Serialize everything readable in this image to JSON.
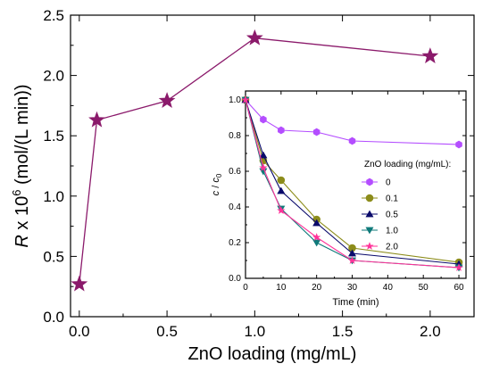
{
  "chart_data": [
    {
      "type": "line",
      "xlabel": "ZnO loading (mg/mL)",
      "ylabel": {
        "italic": "R",
        "mid": " x 10",
        "sup": "6",
        "rest": " (mol/(L min))"
      },
      "xlim": [
        -0.05,
        2.25
      ],
      "ylim": [
        0,
        2.5
      ],
      "xticks": [
        "0.0",
        "0.5",
        "1.0",
        "1.5",
        "2.0"
      ],
      "yticks": [
        "0.0",
        "0.5",
        "1.0",
        "1.5",
        "2.0",
        "2.5"
      ],
      "grid": false,
      "series": [
        {
          "color": "#8b1a6b",
          "marker": "star",
          "x": [
            0,
            0.1,
            0.5,
            1.0,
            2.0
          ],
          "y": [
            0.27,
            1.63,
            1.79,
            2.31,
            2.16
          ]
        }
      ]
    },
    {
      "type": "line",
      "xlabel": "Time (min)",
      "ylabel": {
        "italic_c": "c",
        "slash": " / ",
        "italic_c0": "c",
        "sub": "0"
      },
      "xlim": [
        0,
        62
      ],
      "ylim": [
        0,
        1.05
      ],
      "xticks": [
        "0",
        "10",
        "20",
        "30",
        "40",
        "50",
        "60"
      ],
      "yticks": [
        "0.0",
        "0.2",
        "0.4",
        "0.6",
        "0.8",
        "1.0"
      ],
      "grid": false,
      "legend": {
        "title": "ZnO loading (mg/mL):",
        "placement": "right-center"
      },
      "series": [
        {
          "name": "0",
          "color": "#b44dff",
          "marker": "hexagon",
          "x": [
            0,
            5,
            10,
            20,
            30,
            60
          ],
          "y": [
            1.0,
            0.89,
            0.83,
            0.82,
            0.77,
            0.75
          ]
        },
        {
          "name": "0.1",
          "color": "#8c8c1a",
          "marker": "circle",
          "x": [
            0,
            5,
            10,
            20,
            30,
            60
          ],
          "y": [
            1.0,
            0.66,
            0.55,
            0.33,
            0.17,
            0.09
          ]
        },
        {
          "name": "0.5",
          "color": "#0a0a6b",
          "marker": "triangle-up",
          "x": [
            0,
            5,
            10,
            20,
            30,
            60
          ],
          "y": [
            1.0,
            0.69,
            0.49,
            0.31,
            0.14,
            0.08
          ]
        },
        {
          "name": "1.0",
          "color": "#0f7a7a",
          "marker": "triangle-down",
          "x": [
            0,
            5,
            10,
            20,
            30,
            60
          ],
          "y": [
            1.0,
            0.6,
            0.39,
            0.2,
            0.1,
            0.06
          ]
        },
        {
          "name": "2.0",
          "color": "#ff3399",
          "marker": "star",
          "x": [
            0,
            5,
            10,
            20,
            30,
            60
          ],
          "y": [
            1.0,
            0.62,
            0.38,
            0.23,
            0.1,
            0.06
          ]
        }
      ]
    }
  ]
}
